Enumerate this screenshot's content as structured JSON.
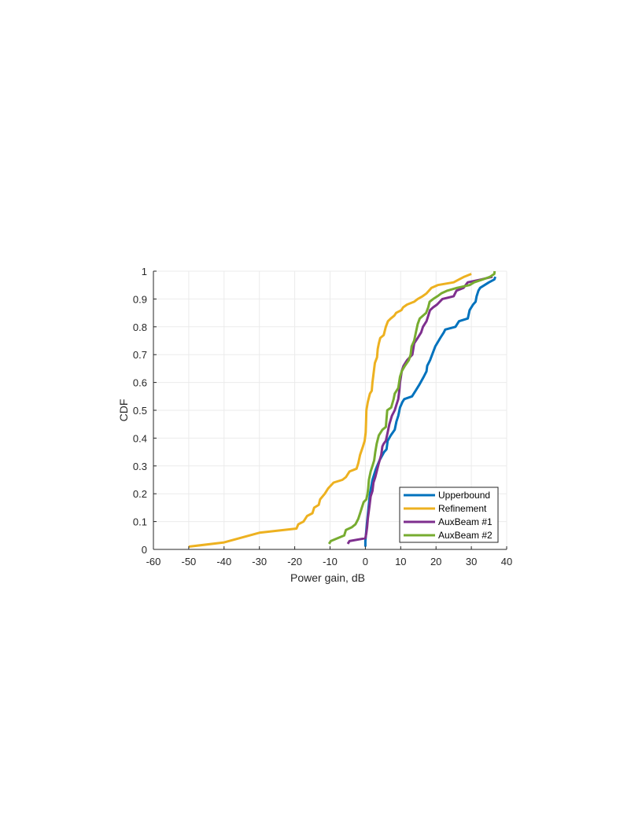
{
  "chart_data": {
    "type": "line",
    "title": "",
    "xlabel": "Power gain, dB",
    "ylabel": "CDF",
    "xlim": [
      -60,
      40
    ],
    "ylim": [
      0,
      1
    ],
    "xticks": [
      -60,
      -50,
      -40,
      -30,
      -20,
      -10,
      0,
      10,
      20,
      30,
      40
    ],
    "yticks": [
      0,
      0.1,
      0.2,
      0.3,
      0.4,
      0.5,
      0.6,
      0.7,
      0.8,
      0.9,
      1
    ],
    "xtick_labels": [
      "-60",
      "-50",
      "-40",
      "-30",
      "-20",
      "-10",
      "0",
      "10",
      "20",
      "30",
      "40"
    ],
    "ytick_labels": [
      "0",
      "0.1",
      "0.2",
      "0.3",
      "0.4",
      "0.5",
      "0.6",
      "0.7",
      "0.8",
      "0.9",
      "1"
    ],
    "grid": true,
    "legend_position": "bottom-right",
    "series": [
      {
        "name": "Upperbound",
        "color": "#0072BD",
        "points": [
          [
            0,
            0.01
          ],
          [
            0,
            0.03
          ],
          [
            0.5,
            0.1
          ],
          [
            0.9,
            0.15
          ],
          [
            1.3,
            0.2
          ],
          [
            2,
            0.25
          ],
          [
            3,
            0.29
          ],
          [
            4,
            0.32
          ],
          [
            5.3,
            0.35
          ],
          [
            6,
            0.36
          ],
          [
            6.3,
            0.39
          ],
          [
            7.2,
            0.41
          ],
          [
            8.3,
            0.43
          ],
          [
            8.8,
            0.46
          ],
          [
            9.3,
            0.48
          ],
          [
            9.8,
            0.51
          ],
          [
            10.5,
            0.53
          ],
          [
            11,
            0.54
          ],
          [
            13.2,
            0.55
          ],
          [
            14.2,
            0.57
          ],
          [
            15.2,
            0.59
          ],
          [
            16.5,
            0.62
          ],
          [
            17.3,
            0.64
          ],
          [
            17.5,
            0.66
          ],
          [
            18.3,
            0.68
          ],
          [
            19.2,
            0.71
          ],
          [
            19.8,
            0.73
          ],
          [
            21.2,
            0.76
          ],
          [
            22.2,
            0.78
          ],
          [
            22.6,
            0.79
          ],
          [
            25.5,
            0.8
          ],
          [
            26.5,
            0.82
          ],
          [
            29,
            0.83
          ],
          [
            29.5,
            0.86
          ],
          [
            30.5,
            0.88
          ],
          [
            31.2,
            0.89
          ],
          [
            31.5,
            0.91
          ],
          [
            32,
            0.93
          ],
          [
            32.5,
            0.94
          ],
          [
            35,
            0.96
          ],
          [
            36.5,
            0.97
          ],
          [
            36.8,
            0.98
          ]
        ]
      },
      {
        "name": "Refinement",
        "color": "#EDB120",
        "points": [
          [
            -50,
            0.01
          ],
          [
            -40,
            0.025
          ],
          [
            -30,
            0.06
          ],
          [
            -19.5,
            0.075
          ],
          [
            -19,
            0.09
          ],
          [
            -17.5,
            0.1
          ],
          [
            -16.5,
            0.12
          ],
          [
            -15,
            0.13
          ],
          [
            -14.5,
            0.15
          ],
          [
            -13.2,
            0.16
          ],
          [
            -12.8,
            0.18
          ],
          [
            -11.5,
            0.2
          ],
          [
            -10.5,
            0.22
          ],
          [
            -9,
            0.24
          ],
          [
            -6.5,
            0.25
          ],
          [
            -5.5,
            0.26
          ],
          [
            -4.5,
            0.28
          ],
          [
            -2.5,
            0.29
          ],
          [
            -2,
            0.31
          ],
          [
            -1.5,
            0.34
          ],
          [
            -0.7,
            0.37
          ],
          [
            -0.2,
            0.39
          ],
          [
            0.1,
            0.42
          ],
          [
            0.2,
            0.46
          ],
          [
            0.3,
            0.5
          ],
          [
            0.7,
            0.53
          ],
          [
            1.3,
            0.56
          ],
          [
            1.8,
            0.57
          ],
          [
            2,
            0.6
          ],
          [
            2.2,
            0.62
          ],
          [
            2.5,
            0.65
          ],
          [
            2.7,
            0.67
          ],
          [
            3.3,
            0.69
          ],
          [
            3.5,
            0.72
          ],
          [
            3.8,
            0.74
          ],
          [
            4.2,
            0.76
          ],
          [
            5.2,
            0.77
          ],
          [
            5.8,
            0.8
          ],
          [
            6.4,
            0.82
          ],
          [
            7.2,
            0.83
          ],
          [
            8.2,
            0.84
          ],
          [
            8.7,
            0.85
          ],
          [
            10.2,
            0.86
          ],
          [
            10.7,
            0.87
          ],
          [
            11.8,
            0.88
          ],
          [
            13.8,
            0.89
          ],
          [
            14.8,
            0.9
          ],
          [
            16.2,
            0.91
          ],
          [
            17.3,
            0.92
          ],
          [
            18.7,
            0.94
          ],
          [
            20.5,
            0.95
          ],
          [
            25,
            0.96
          ],
          [
            26.5,
            0.97
          ],
          [
            28,
            0.98
          ],
          [
            30,
            0.99
          ]
        ]
      },
      {
        "name": "AuxBeam #1",
        "color": "#7E2F8E",
        "points": [
          [
            -5,
            0.02
          ],
          [
            -4.5,
            0.03
          ],
          [
            0,
            0.04
          ],
          [
            0.3,
            0.06
          ],
          [
            0.5,
            0.08
          ],
          [
            0.7,
            0.11
          ],
          [
            0.9,
            0.13
          ],
          [
            1.2,
            0.16
          ],
          [
            1.5,
            0.19
          ],
          [
            2,
            0.21
          ],
          [
            2.3,
            0.24
          ],
          [
            2.8,
            0.26
          ],
          [
            3.2,
            0.28
          ],
          [
            3.8,
            0.31
          ],
          [
            4.5,
            0.34
          ],
          [
            4.8,
            0.37
          ],
          [
            5.2,
            0.38
          ],
          [
            5.8,
            0.39
          ],
          [
            6.3,
            0.42
          ],
          [
            6.8,
            0.45
          ],
          [
            7.5,
            0.48
          ],
          [
            8.3,
            0.5
          ],
          [
            8.8,
            0.52
          ],
          [
            9.3,
            0.54
          ],
          [
            9.6,
            0.57
          ],
          [
            9.8,
            0.6
          ],
          [
            10.3,
            0.64
          ],
          [
            10.8,
            0.66
          ],
          [
            11.8,
            0.68
          ],
          [
            13.3,
            0.7
          ],
          [
            13.8,
            0.74
          ],
          [
            14.8,
            0.76
          ],
          [
            15.8,
            0.78
          ],
          [
            16.3,
            0.8
          ],
          [
            17.3,
            0.82
          ],
          [
            18.3,
            0.86
          ],
          [
            19.2,
            0.87
          ],
          [
            20.3,
            0.88
          ],
          [
            21.8,
            0.9
          ],
          [
            25,
            0.91
          ],
          [
            25.8,
            0.93
          ],
          [
            27.8,
            0.94
          ],
          [
            29,
            0.96
          ],
          [
            32.8,
            0.97
          ],
          [
            36,
            0.98
          ]
        ]
      },
      {
        "name": "AuxBeam #2",
        "color": "#77AC30",
        "points": [
          [
            -10.3,
            0.02
          ],
          [
            -9.8,
            0.03
          ],
          [
            -6,
            0.05
          ],
          [
            -5.5,
            0.07
          ],
          [
            -3.8,
            0.08
          ],
          [
            -2.8,
            0.09
          ],
          [
            -2,
            0.11
          ],
          [
            -1.5,
            0.13
          ],
          [
            -1,
            0.15
          ],
          [
            -0.5,
            0.17
          ],
          [
            0.3,
            0.18
          ],
          [
            0.6,
            0.2
          ],
          [
            0.8,
            0.22
          ],
          [
            1,
            0.25
          ],
          [
            1.5,
            0.28
          ],
          [
            2,
            0.3
          ],
          [
            2.5,
            0.32
          ],
          [
            2.8,
            0.35
          ],
          [
            3.2,
            0.38
          ],
          [
            3.8,
            0.41
          ],
          [
            4.8,
            0.43
          ],
          [
            5.8,
            0.44
          ],
          [
            6,
            0.47
          ],
          [
            6.2,
            0.5
          ],
          [
            7.3,
            0.51
          ],
          [
            8,
            0.54
          ],
          [
            8.3,
            0.56
          ],
          [
            9.3,
            0.58
          ],
          [
            9.8,
            0.62
          ],
          [
            10.3,
            0.64
          ],
          [
            11.2,
            0.66
          ],
          [
            12.3,
            0.68
          ],
          [
            12.8,
            0.7
          ],
          [
            13.1,
            0.73
          ],
          [
            13.8,
            0.75
          ],
          [
            14.3,
            0.78
          ],
          [
            14.8,
            0.81
          ],
          [
            15.4,
            0.83
          ],
          [
            17.2,
            0.85
          ],
          [
            17.8,
            0.87
          ],
          [
            18.2,
            0.89
          ],
          [
            19.2,
            0.9
          ],
          [
            20.4,
            0.91
          ],
          [
            21.5,
            0.92
          ],
          [
            23.2,
            0.93
          ],
          [
            26,
            0.94
          ],
          [
            29.5,
            0.95
          ],
          [
            30.8,
            0.96
          ],
          [
            33.2,
            0.97
          ],
          [
            35.3,
            0.98
          ],
          [
            36.5,
            0.99
          ],
          [
            36.6,
            1
          ]
        ]
      }
    ]
  }
}
